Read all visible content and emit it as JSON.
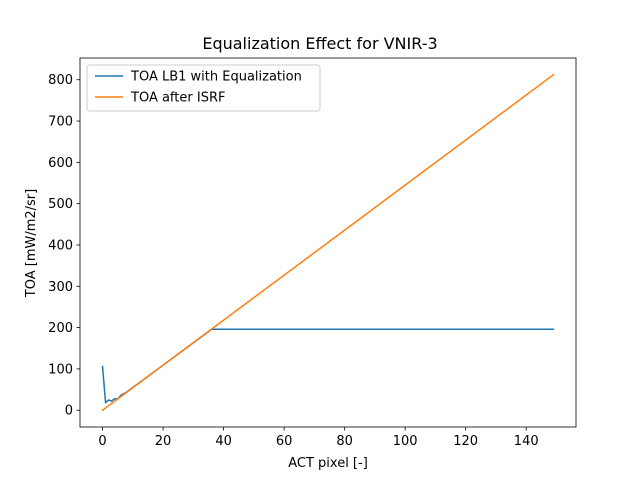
{
  "chart_data": {
    "type": "line",
    "title": "Equalization Effect for VNIR-3",
    "xlabel": "ACT pixel [-]",
    "ylabel": "TOA [mW/m2/sr]",
    "xlim": [
      -7.45,
      156.45
    ],
    "ylim": [
      -40.6,
      852.6
    ],
    "xticks": [
      0,
      20,
      40,
      60,
      80,
      100,
      120,
      140
    ],
    "yticks": [
      0,
      100,
      200,
      300,
      400,
      500,
      600,
      700,
      800
    ],
    "grid": false,
    "legend_position": "upper-left",
    "series": [
      {
        "name": "TOA LB1 with Equalization",
        "color": "#1f77b4",
        "x": [
          0,
          1,
          2,
          3,
          4,
          5,
          6,
          7,
          8,
          10,
          15,
          20,
          25,
          30,
          35,
          36,
          40,
          60,
          80,
          100,
          120,
          140,
          149
        ],
        "y": [
          106,
          18,
          25,
          22,
          28,
          27,
          36,
          40,
          44,
          55,
          82,
          109,
          136,
          163,
          190,
          196,
          196,
          196,
          196,
          196,
          196,
          196,
          196
        ]
      },
      {
        "name": "TOA after ISRF",
        "color": "#ff7f0e",
        "x": [
          0,
          149
        ],
        "y": [
          0,
          812
        ]
      }
    ]
  }
}
